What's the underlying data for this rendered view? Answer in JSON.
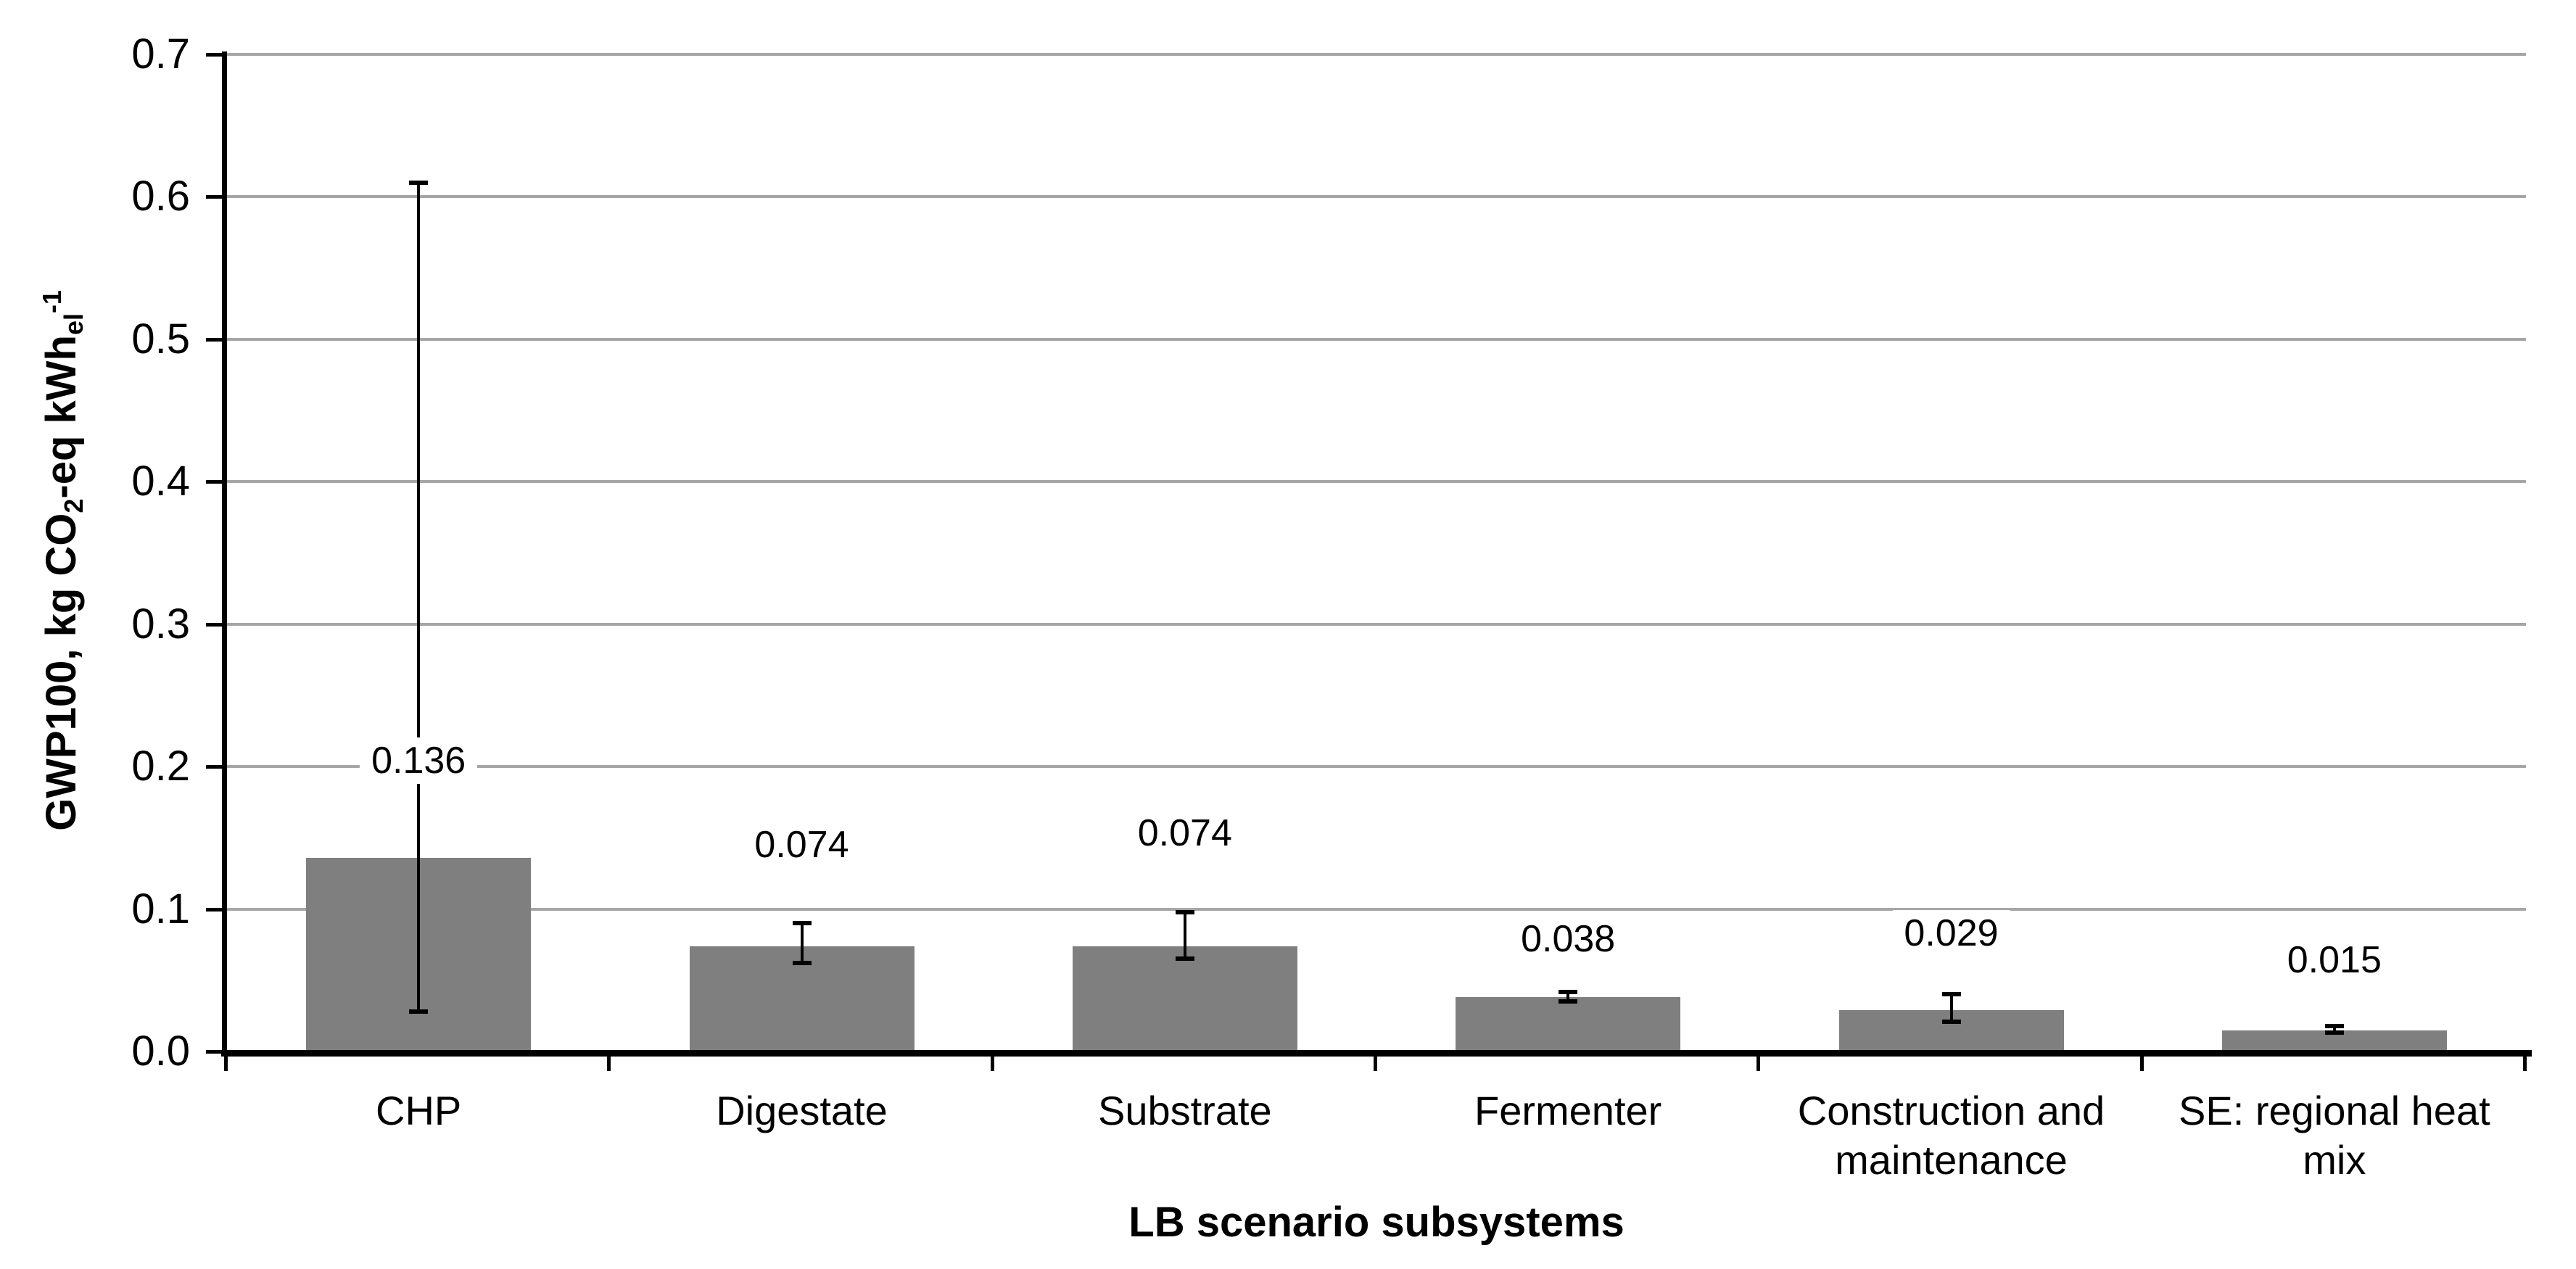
{
  "chart_data": {
    "type": "bar",
    "title": "",
    "xlabel": "LB scenario subsystems",
    "ylabel_plain": "GWP100, kg CO2-eq kWh_el^-1",
    "ylabel_segments": [
      {
        "text": "GWP100, kg CO",
        "style": "normal"
      },
      {
        "text": "2",
        "style": "sub"
      },
      {
        "text": "-eq kWh",
        "style": "normal"
      },
      {
        "text": "el",
        "style": "sub"
      },
      {
        "text": "-1",
        "style": "sup"
      }
    ],
    "categories": [
      "CHP",
      "Digestate",
      "Substrate",
      "Fermenter",
      "Construction and\nmaintenance",
      "SE: regional heat\nmix"
    ],
    "values": [
      0.136,
      0.074,
      0.074,
      0.038,
      0.029,
      0.015
    ],
    "data_labels": [
      "0.136",
      "0.074",
      "0.074",
      "0.038",
      "0.029",
      "0.015"
    ],
    "error_bars": [
      {
        "low": 0.028,
        "high": 0.61
      },
      {
        "low": 0.062,
        "high": 0.09
      },
      {
        "low": 0.065,
        "high": 0.098
      },
      {
        "low": 0.035,
        "high": 0.042
      },
      {
        "low": 0.021,
        "high": 0.04
      },
      {
        "low": 0.013,
        "high": 0.018
      }
    ],
    "label_centers_y": [
      0.204,
      0.145,
      0.153,
      0.079,
      0.083,
      0.064
    ],
    "ylim": [
      0,
      0.7
    ],
    "ytick_step": 0.1,
    "ytick_labels": [
      "0.0",
      "0.1",
      "0.2",
      "0.3",
      "0.4",
      "0.5",
      "0.6",
      "0.7"
    ],
    "grid": true,
    "legend": "none",
    "colors": {
      "bar": "#7f7f7f",
      "gridline": "#a6a6a6",
      "axis": "#000000",
      "text": "#000000",
      "background": "#ffffff"
    }
  }
}
